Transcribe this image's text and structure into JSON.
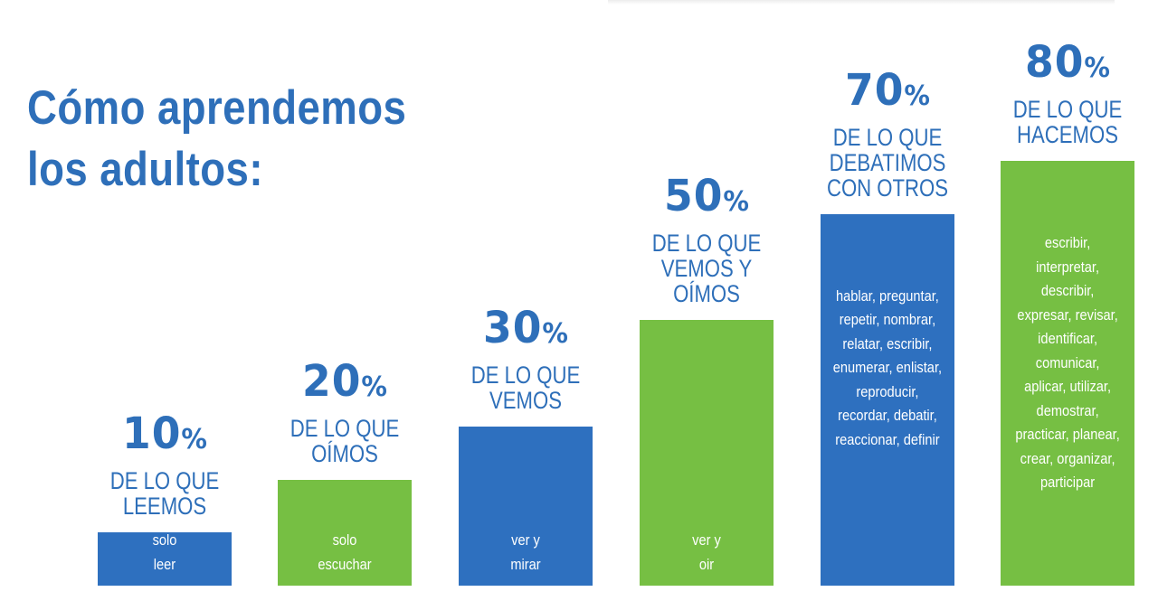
{
  "title": {
    "line1": "Cómo aprendemos",
    "line2": "los adultos:"
  },
  "colors": {
    "blue": "#2e70bf",
    "green": "#76bf43",
    "text_blue": "#2e6fb9"
  },
  "chart_data": {
    "type": "bar",
    "title": "Cómo aprendemos los adultos:",
    "ylim": [
      0,
      100
    ],
    "categories": [
      "10%",
      "20%",
      "30%",
      "50%",
      "70%",
      "80%"
    ],
    "values": [
      10,
      20,
      30,
      50,
      70,
      80
    ],
    "bars": [
      {
        "value": 10,
        "pct": "10",
        "caption": [
          "DE LO QUE",
          "LEEMOS"
        ],
        "desc": [
          "solo",
          "leer"
        ],
        "color": "#2e70bf"
      },
      {
        "value": 20,
        "pct": "20",
        "caption": [
          "DE LO QUE",
          "OÍMOS"
        ],
        "desc": [
          "solo",
          "escuchar"
        ],
        "color": "#76bf43"
      },
      {
        "value": 30,
        "pct": "30",
        "caption": [
          "DE LO QUE",
          "VEMOS"
        ],
        "desc": [
          "ver y",
          "mirar"
        ],
        "color": "#2e70bf"
      },
      {
        "value": 50,
        "pct": "50",
        "caption": [
          "DE LO QUE",
          "VEMOS Y",
          "OÍMOS"
        ],
        "desc": [
          "ver y",
          "oir"
        ],
        "color": "#76bf43"
      },
      {
        "value": 70,
        "pct": "70",
        "caption": [
          "DE LO QUE",
          "DEBATIMOS",
          "CON OTROS"
        ],
        "desc": [
          "hablar, preguntar,",
          "repetir, nombrar,",
          "relatar, escribir,",
          "enumerar, enlistar,",
          "reproducir,",
          "recordar, debatir,",
          "reaccionar, definir"
        ],
        "color": "#2e70bf"
      },
      {
        "value": 80,
        "pct": "80",
        "caption": [
          "DE LO QUE",
          "HACEMOS"
        ],
        "desc": [
          "escribir,",
          "interpretar,",
          "describir,",
          "expresar, revisar,",
          "identificar,",
          "comunicar,",
          "aplicar, utilizar,",
          "demostrar,",
          "practicar, planear,",
          "crear, organizar,",
          "participar"
        ],
        "color": "#76bf43"
      }
    ]
  }
}
